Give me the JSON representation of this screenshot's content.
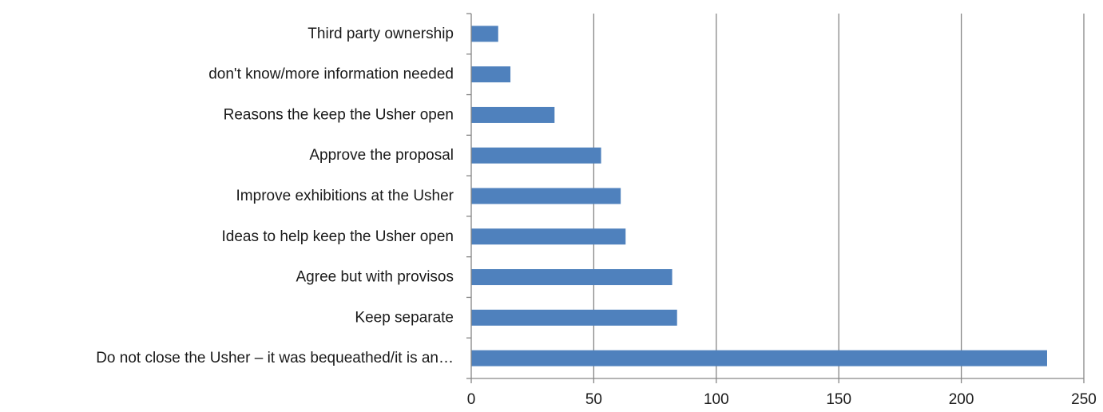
{
  "chart_data": {
    "type": "bar",
    "orientation": "horizontal",
    "title": "",
    "xlabel": "",
    "ylabel": "",
    "categories": [
      "Third party ownership",
      "don't know/more information needed",
      "Reasons the keep the Usher open",
      "Approve the proposal",
      "Improve exhibitions at the Usher",
      "Ideas to help keep the Usher open",
      "Agree but with provisos",
      "Keep separate",
      "Do not close the Usher – it was bequeathed/it is an…"
    ],
    "values": [
      11,
      16,
      34,
      53,
      61,
      63,
      82,
      84,
      235
    ],
    "xlim": [
      0,
      250
    ],
    "xticks": [
      0,
      50,
      100,
      150,
      200,
      250
    ],
    "xtick_labels": [
      "0",
      "50",
      "100",
      "150",
      "200",
      "250"
    ],
    "grid": "vertical",
    "legend": "none",
    "bar_color": "#4f81bd",
    "grid_color": "#868686"
  }
}
